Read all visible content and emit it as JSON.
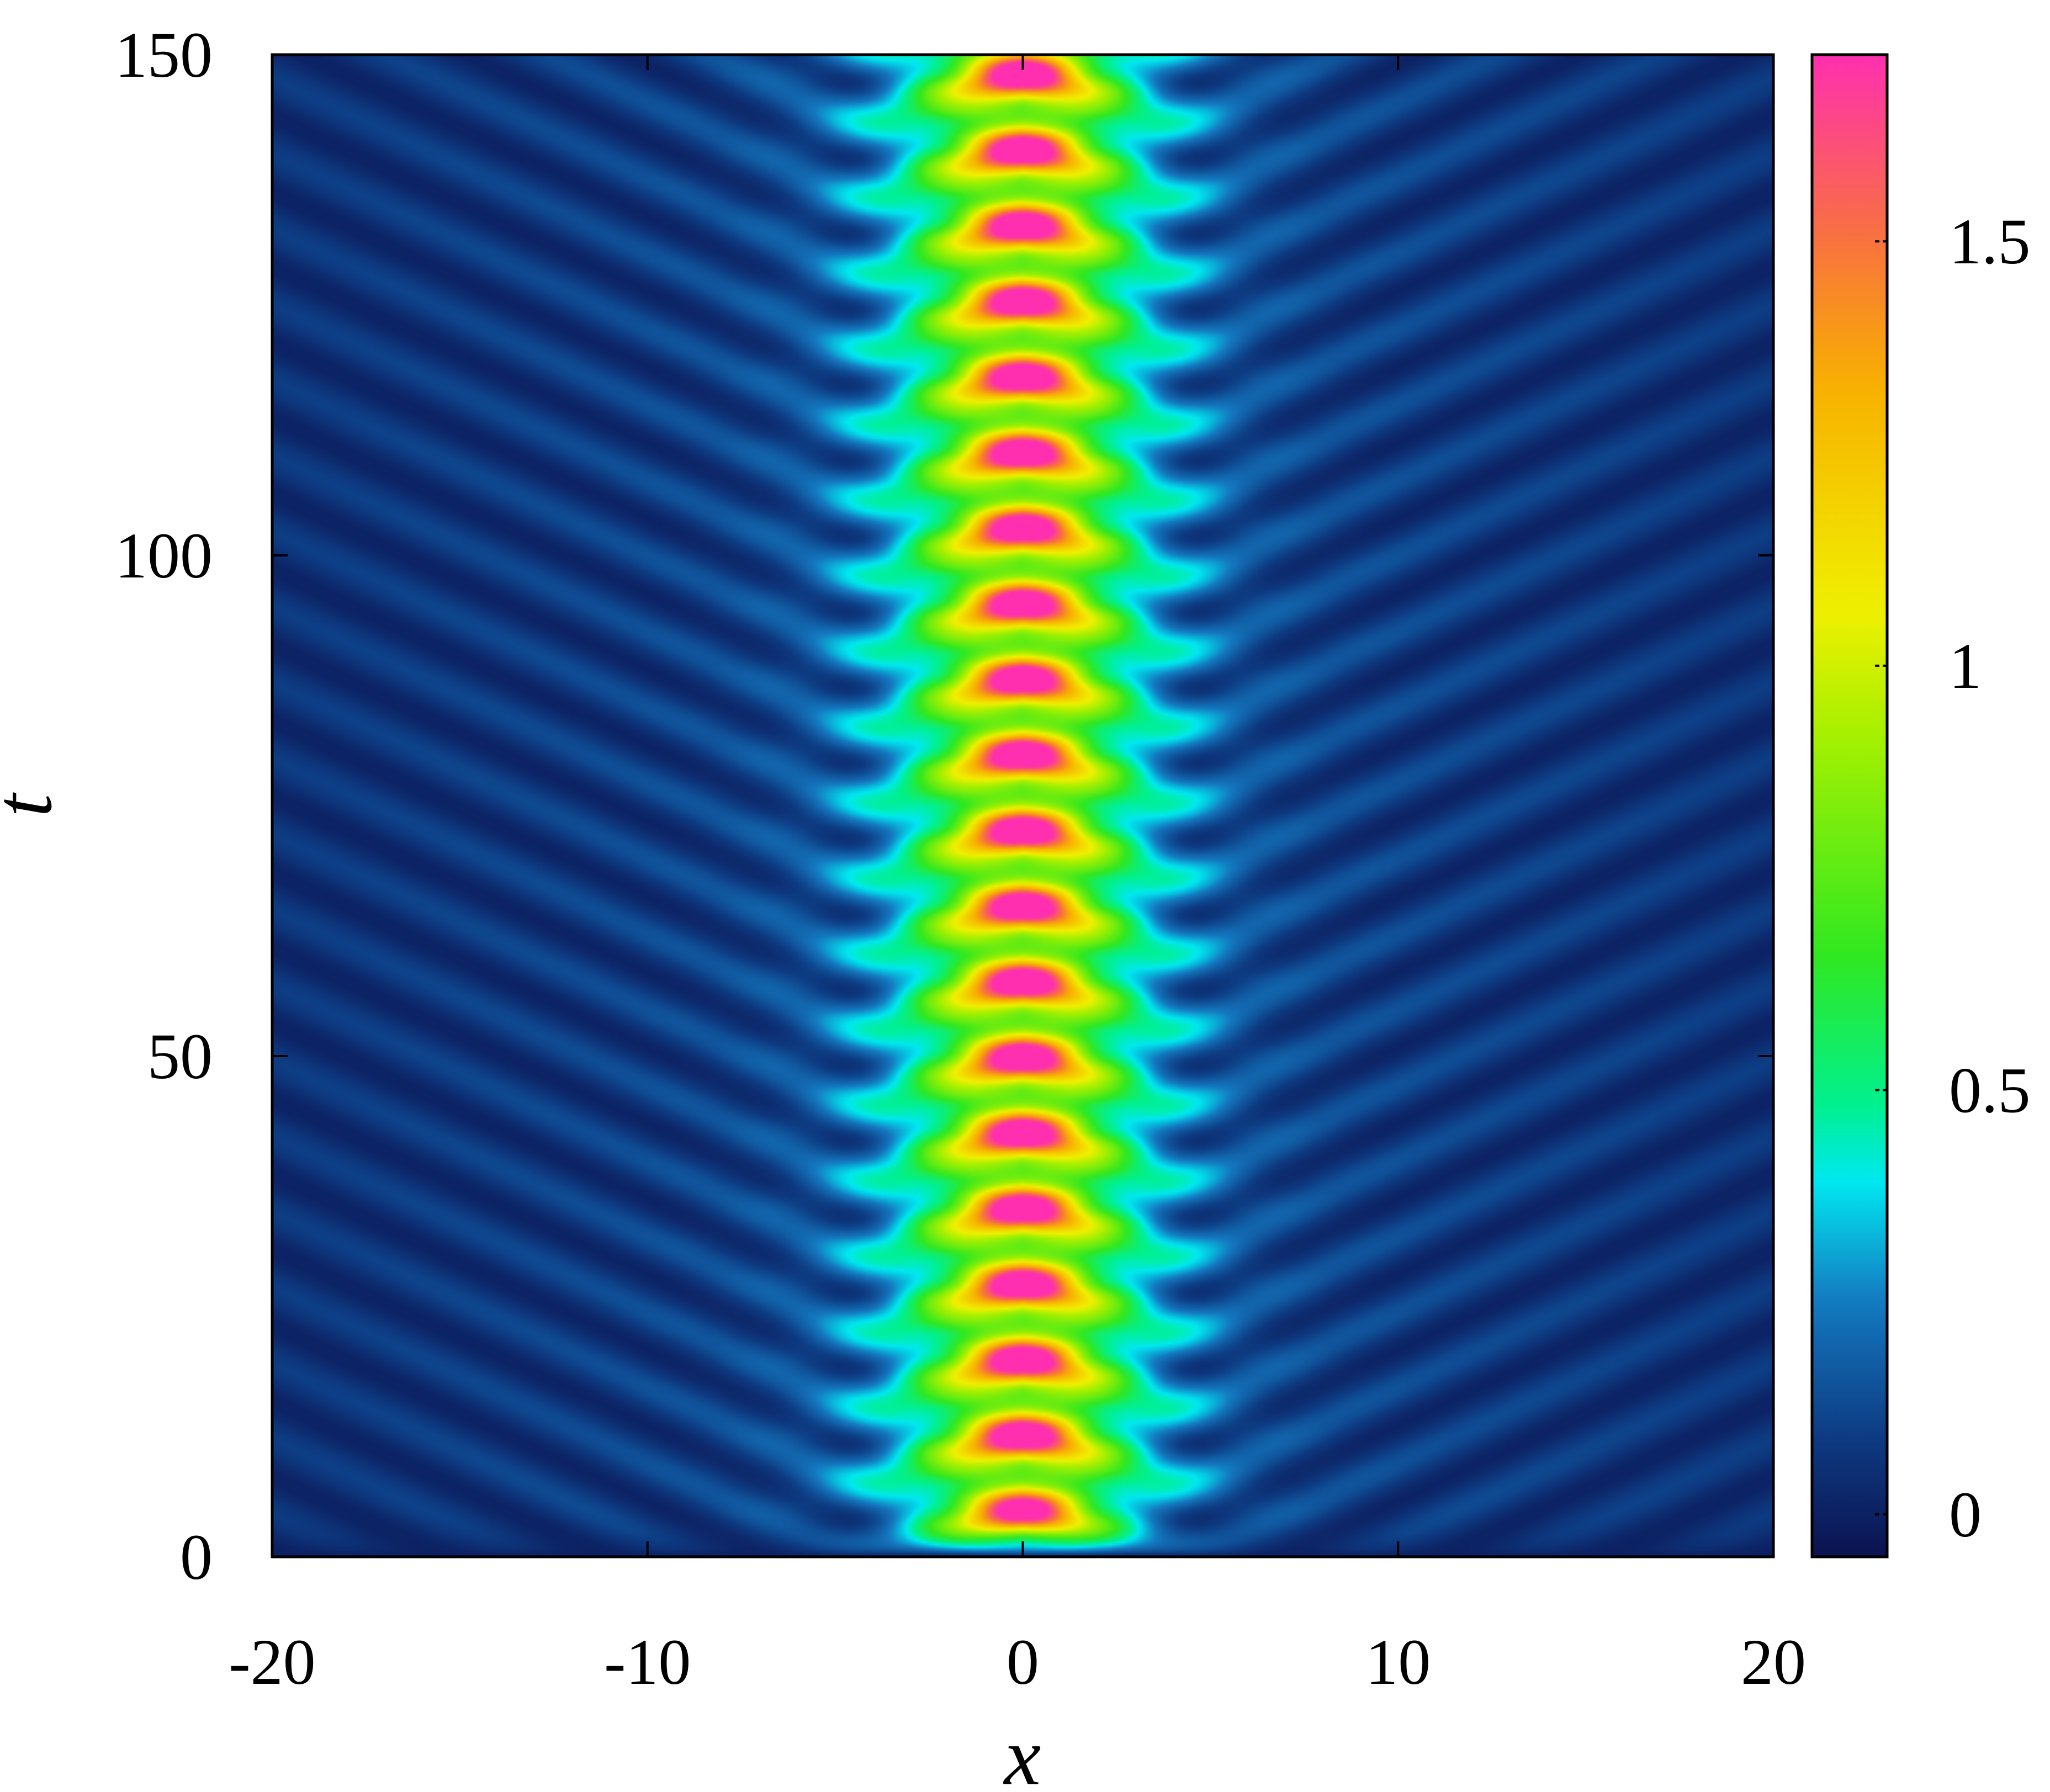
{
  "chart_data": {
    "type": "heatmap",
    "title": "",
    "xlabel": "x",
    "ylabel": "t",
    "xlim": [
      -20,
      20
    ],
    "ylim": [
      0,
      150
    ],
    "x_ticks": [
      "-20",
      "-10",
      "0",
      "10",
      "20"
    ],
    "y_ticks": [
      "0",
      "50",
      "100",
      "150"
    ],
    "colorbar": {
      "range": [
        -0.05,
        1.72
      ],
      "ticks": [
        "0",
        "0.5",
        "1",
        "1.5"
      ],
      "palette": [
        "#0c1250",
        "#0d3b82",
        "#1479c0",
        "#00e8f0",
        "#00f090",
        "#30e820",
        "#a8f000",
        "#f0f000",
        "#f8b000",
        "#f87040",
        "#ff2fb0"
      ]
    },
    "pattern": {
      "description_values": {
        "peak_center_x": 0,
        "breather_period_t": 7.55,
        "first_peak_t": 4.6,
        "peak_count": 20,
        "peak_amplitude": 1.72,
        "radiation_slope_dx_dt": 0.57
      }
    },
    "grid": false,
    "legend": "none"
  }
}
